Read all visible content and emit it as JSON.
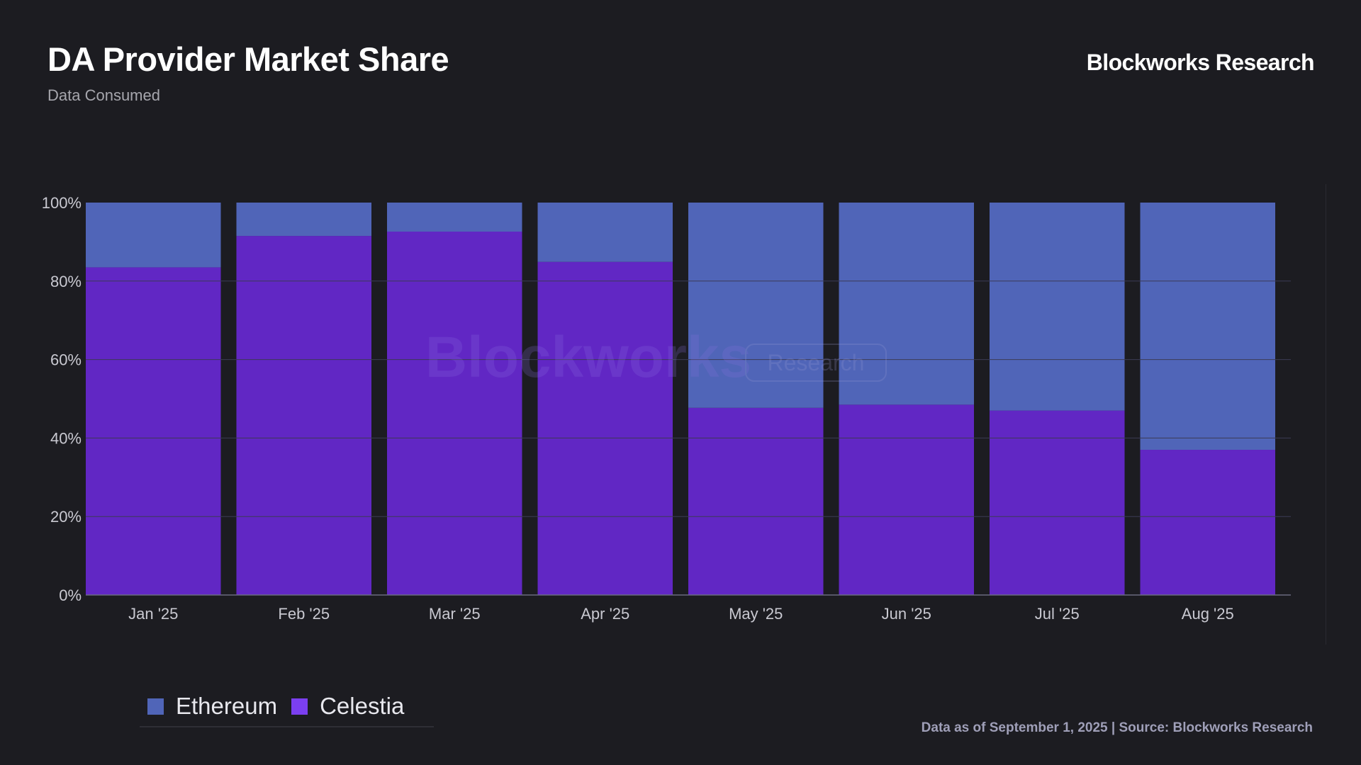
{
  "header": {
    "title": "DA Provider Market Share",
    "subtitle": "Data Consumed",
    "brand": "Blockworks Research"
  },
  "watermark": {
    "word": "Blockworks",
    "tag": "Research"
  },
  "footer": {
    "source": "Data as of September 1, 2025 | Source: Blockworks Research"
  },
  "colors": {
    "background": "#1c1c21",
    "ethereum": "#5065b8",
    "celestia": "#6127c4",
    "grid": "#3b3b55",
    "tick_text": "#c9c9d1"
  },
  "chart_data": {
    "type": "bar",
    "stacked": true,
    "percent_stacked": true,
    "title": "DA Provider Market Share",
    "subtitle": "Data Consumed",
    "categories": [
      "Jan '25",
      "Feb '25",
      "Mar '25",
      "Apr '25",
      "May '25",
      "Jun '25",
      "Jul '25",
      "Aug '25"
    ],
    "series": [
      {
        "name": "Celestia",
        "color": "#6127c4",
        "values": [
          83.5,
          91.5,
          92.6,
          84.9,
          47.7,
          48.5,
          47.0,
          37.0
        ]
      },
      {
        "name": "Ethereum",
        "color": "#5065b8",
        "values": [
          16.5,
          8.5,
          7.4,
          15.1,
          52.3,
          51.5,
          53.0,
          63.0
        ]
      }
    ],
    "ylim": [
      0,
      100
    ],
    "yticks": [
      "0%",
      "20%",
      "40%",
      "60%",
      "80%",
      "100%"
    ],
    "ytick_values": [
      0,
      20,
      40,
      60,
      80,
      100
    ],
    "grid": true,
    "legend": {
      "placement": "bottom-left",
      "entries": [
        "Ethereum",
        "Celestia"
      ]
    }
  }
}
